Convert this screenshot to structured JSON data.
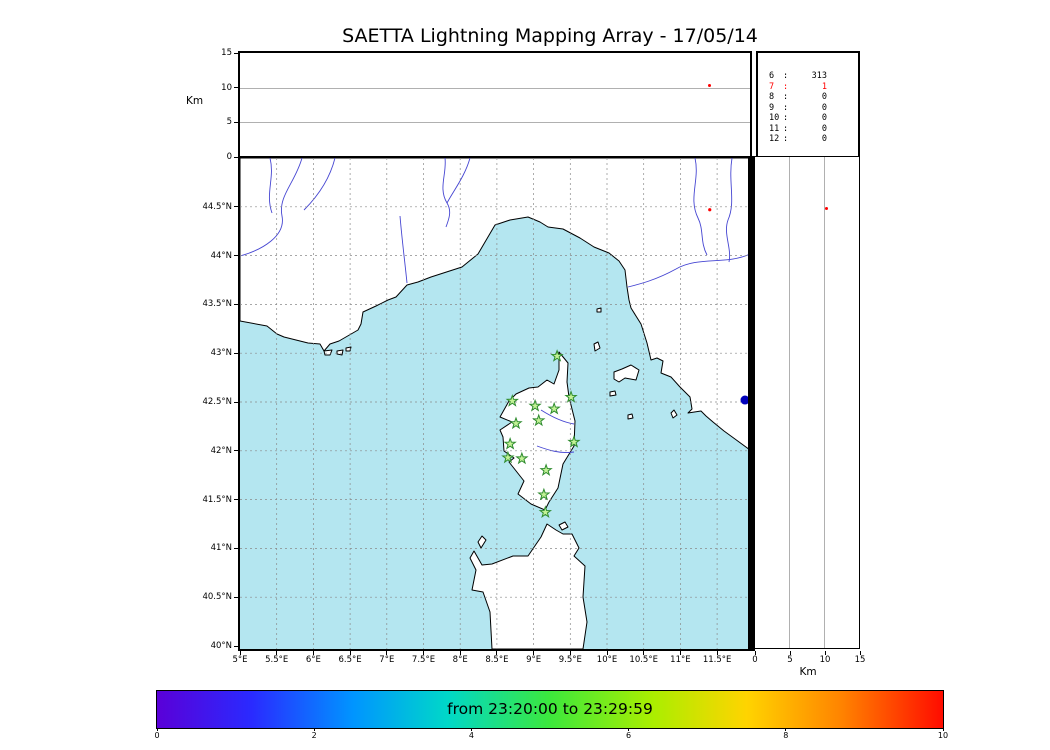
{
  "title": "SAETTA Lightning Mapping Array - 17/05/14",
  "colors": {
    "sea": "#b4e6f0",
    "land": "#ffffff",
    "coast": "#000000",
    "river": "#4646d2",
    "grid": "#8a8a8a",
    "station_fill": "#c3f296",
    "station_edge": "#2e8b2e",
    "source_point": "#ff0000",
    "blue_marker": "#0000bb"
  },
  "chart_data": [
    {
      "id": "alt_time",
      "type": "scatter",
      "panel": "altitude vs time (top)",
      "ylabel": "Km",
      "ylim": [
        0,
        15
      ],
      "yticks": [
        0,
        5,
        10,
        15
      ],
      "grid": true,
      "points": [
        {
          "x_frac": 0.921,
          "alt_km": 10.3,
          "color": "#ff0000"
        }
      ]
    },
    {
      "id": "stations_histogram",
      "type": "table",
      "panel": "sources per number of contributing stations",
      "rows": [
        {
          "n_stations": "6",
          "count": "313",
          "color": "#000000"
        },
        {
          "n_stations": "7",
          "count": "1",
          "color": "#ff0000"
        },
        {
          "n_stations": "8",
          "count": "0",
          "color": "#000000"
        },
        {
          "n_stations": "9",
          "count": "0",
          "color": "#000000"
        },
        {
          "n_stations": "10",
          "count": "0",
          "color": "#000000"
        },
        {
          "n_stations": "11",
          "count": "0",
          "color": "#000000"
        },
        {
          "n_stations": "12",
          "count": "0",
          "color": "#000000"
        }
      ]
    },
    {
      "id": "map",
      "type": "scatter",
      "panel": "plan view map (longitude vs latitude)",
      "xlim": [
        5,
        11.95
      ],
      "ylim": [
        40,
        45
      ],
      "lat_ticks": [
        "44.5°N",
        "44°N",
        "43.5°N",
        "43°N",
        "42.5°N",
        "42°N",
        "41.5°N",
        "41°N",
        "40.5°N",
        "40°N"
      ],
      "lon_ticks": [
        "5°E",
        "5.5°E",
        "6°E",
        "6.5°E",
        "7°E",
        "7.5°E",
        "8°E",
        "8.5°E",
        "9°E",
        "9.5°E",
        "10°E",
        "10.5°E",
        "11°E",
        "11.5°E"
      ],
      "grid": true,
      "stations_lonlat": [
        [
          9.32,
          42.97
        ],
        [
          8.71,
          42.51
        ],
        [
          9.02,
          42.46
        ],
        [
          9.28,
          42.43
        ],
        [
          9.51,
          42.55
        ],
        [
          8.76,
          42.28
        ],
        [
          9.07,
          42.31
        ],
        [
          8.68,
          42.07
        ],
        [
          9.55,
          42.09
        ],
        [
          8.65,
          41.93
        ],
        [
          8.84,
          41.92
        ],
        [
          9.17,
          41.8
        ],
        [
          9.14,
          41.55
        ],
        [
          9.16,
          41.37
        ]
      ],
      "points": [
        {
          "lon": 11.4,
          "lat": 44.47,
          "r": 1.6,
          "color": "#ff0000",
          "name": "lightning-source-dot-map"
        },
        {
          "lon": 11.88,
          "lat": 42.52,
          "r": 4.5,
          "color": "#0000bb",
          "name": "blue-dot-marker"
        }
      ]
    },
    {
      "id": "alt_lat",
      "type": "scatter",
      "panel": "altitude vs latitude (right)",
      "xlabel": "Km",
      "xlim": [
        0,
        15
      ],
      "xticks": [
        0,
        5,
        10,
        15
      ],
      "grid": true,
      "points": [
        {
          "alt_km": 10.3,
          "lat": 44.47,
          "color": "#ff0000"
        }
      ]
    },
    {
      "id": "colorbar",
      "type": "colorbar",
      "label": "from 23:20:00 to 23:29:59",
      "ticks": [
        0,
        2,
        4,
        6,
        8,
        10
      ],
      "gradient": [
        {
          "pos": 0,
          "color": "#5a00d8"
        },
        {
          "pos": 0.12,
          "color": "#2a2aff"
        },
        {
          "pos": 0.25,
          "color": "#0095ff"
        },
        {
          "pos": 0.37,
          "color": "#00d8c8"
        },
        {
          "pos": 0.5,
          "color": "#3ce83c"
        },
        {
          "pos": 0.63,
          "color": "#aaee00"
        },
        {
          "pos": 0.75,
          "color": "#ffd400"
        },
        {
          "pos": 0.87,
          "color": "#ff8400"
        },
        {
          "pos": 1,
          "color": "#ff0c00"
        }
      ]
    }
  ]
}
